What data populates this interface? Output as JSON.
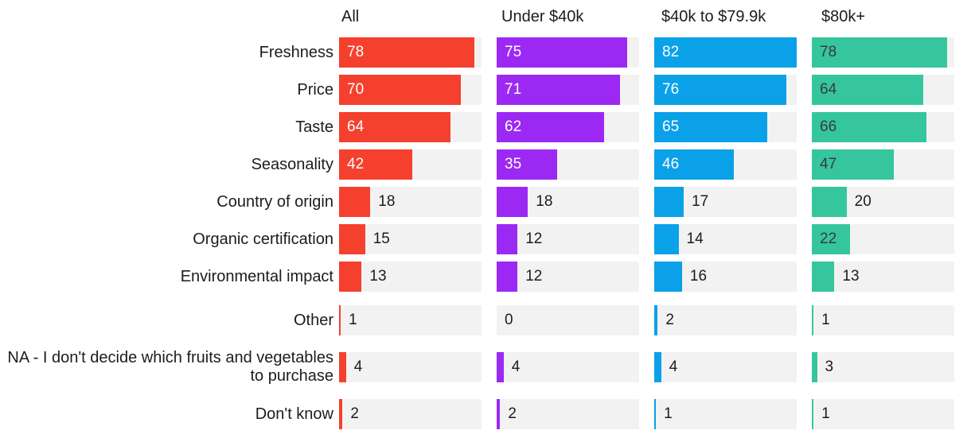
{
  "chart": {
    "background_color": "#ffffff",
    "track_color": "#f2f2f2",
    "label_color": "#1c1c1c",
    "value_outside_color": "#1c1c1c"
  },
  "chart_data": {
    "type": "bar",
    "orientation": "horizontal",
    "title": "",
    "xlabel": "",
    "ylabel": "",
    "xmax": 82,
    "grid": false,
    "legend_position": "column-headers-top",
    "value_labels_shown": true,
    "inside_label_threshold": 22,
    "big_gap_from_index": 7,
    "categories": [
      "Freshness",
      "Price",
      "Taste",
      "Seasonality",
      "Country of origin",
      "Organic certification",
      "Environmental impact",
      "Other",
      "NA - I don't decide which fruits and vegetables to purchase",
      "Don't know"
    ],
    "series": [
      {
        "name": "All",
        "color": "#f5402e",
        "inside_value_color": "#ffffff",
        "values": [
          78,
          70,
          64,
          42,
          18,
          15,
          13,
          1,
          4,
          2
        ]
      },
      {
        "name": "Under $40k",
        "color": "#9c29f3",
        "inside_value_color": "#ffffff",
        "values": [
          75,
          71,
          62,
          35,
          18,
          12,
          12,
          0,
          4,
          2
        ]
      },
      {
        "name": "$40k to $79.9k",
        "color": "#0ba1e8",
        "inside_value_color": "#ffffff",
        "values": [
          82,
          76,
          65,
          46,
          17,
          14,
          16,
          2,
          4,
          1
        ]
      },
      {
        "name": "$80k+",
        "color": "#35c69e",
        "inside_value_color": "#3a3a3a",
        "values": [
          78,
          64,
          66,
          47,
          20,
          22,
          13,
          1,
          3,
          1
        ]
      }
    ]
  }
}
